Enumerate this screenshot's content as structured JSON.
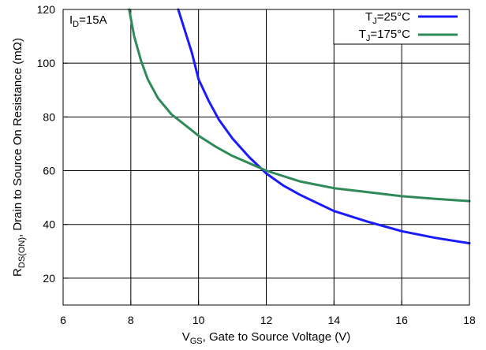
{
  "chart_data": {
    "type": "line",
    "xlabel": {
      "main": "V",
      "sub": "GS",
      "rest": ", Gate to Source Voltage (V)"
    },
    "ylabel": {
      "main": "R",
      "sub": "DS(ON)",
      "rest": ", Drain to Source On Resistance (mΩ)"
    },
    "xlim": [
      6,
      18
    ],
    "ylim": [
      10,
      120
    ],
    "xticks": [
      6,
      8,
      10,
      12,
      14,
      16,
      18
    ],
    "yticks": [
      20,
      40,
      60,
      80,
      100,
      120
    ],
    "grid": true,
    "legend_position": "top-right",
    "annotation": {
      "main": "I",
      "sub": "D",
      "rest": "=15A"
    },
    "series": [
      {
        "name": "TJ=25°C",
        "label_main": "T",
        "label_sub": "J",
        "label_rest": "=25°C",
        "color": "#1a1aff",
        "points": [
          [
            9.4,
            120
          ],
          [
            9.6,
            112
          ],
          [
            9.8,
            104
          ],
          [
            10.0,
            94
          ],
          [
            10.3,
            86
          ],
          [
            10.6,
            79
          ],
          [
            11.0,
            72
          ],
          [
            11.5,
            65
          ],
          [
            12.0,
            59
          ],
          [
            12.5,
            54.5
          ],
          [
            13.0,
            51
          ],
          [
            14.0,
            45
          ],
          [
            15.0,
            41
          ],
          [
            16.0,
            37.5
          ],
          [
            17.0,
            35
          ],
          [
            18.0,
            33
          ]
        ]
      },
      {
        "name": "TJ=175°C",
        "label_main": "T",
        "label_sub": "J",
        "label_rest": "=175°C",
        "color": "#2e8b57",
        "points": [
          [
            7.95,
            120
          ],
          [
            8.1,
            110
          ],
          [
            8.3,
            101
          ],
          [
            8.5,
            94
          ],
          [
            8.8,
            87
          ],
          [
            9.2,
            81
          ],
          [
            9.6,
            77
          ],
          [
            10.0,
            73
          ],
          [
            10.5,
            69
          ],
          [
            11.0,
            65.5
          ],
          [
            12.0,
            60
          ],
          [
            13.0,
            56
          ],
          [
            14.0,
            53.5
          ],
          [
            15.0,
            52
          ],
          [
            16.0,
            50.5
          ],
          [
            17.0,
            49.5
          ],
          [
            18.0,
            48.7
          ]
        ]
      }
    ]
  }
}
